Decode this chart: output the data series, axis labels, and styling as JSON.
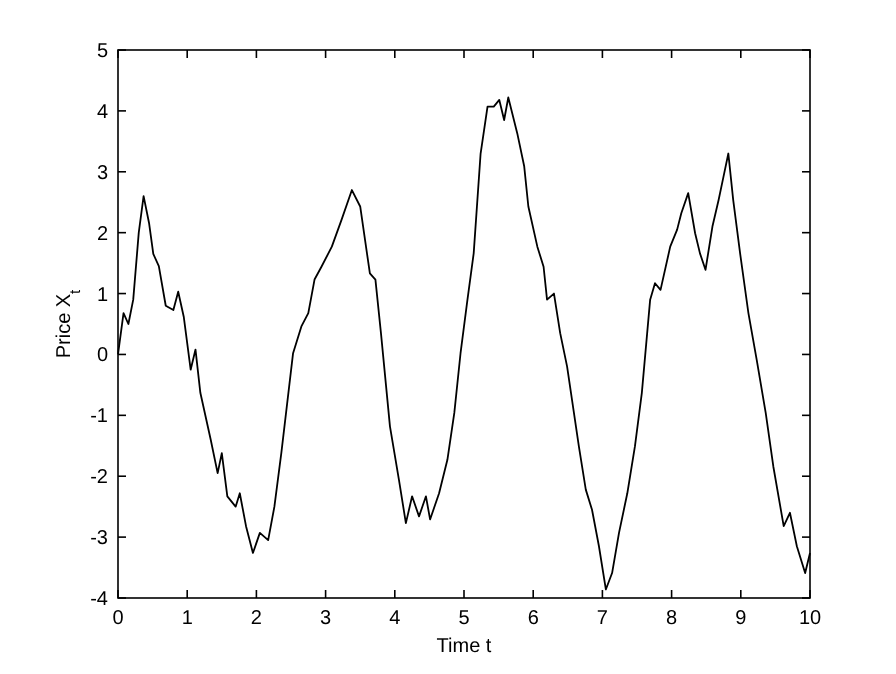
{
  "chart_data": {
    "type": "line",
    "xlabel": "Time t",
    "ylabel": "Price X$_{t}$",
    "xlim": [
      0,
      10
    ],
    "ylim": [
      -4,
      5
    ],
    "xticks": [
      0,
      1,
      2,
      3,
      4,
      5,
      6,
      7,
      8,
      9,
      10
    ],
    "yticks": [
      -4,
      -3,
      -2,
      -1,
      0,
      1,
      2,
      3,
      4,
      5
    ],
    "marker": "none",
    "line_style": "solid",
    "series": [
      {
        "color": "#000000",
        "x": [
          0,
          0.08,
          0.15,
          0.22,
          0.3,
          0.37,
          0.45,
          0.51,
          0.59,
          0.69,
          0.8,
          0.87,
          0.95,
          1.05,
          1.12,
          1.19,
          1.34,
          1.44,
          1.5,
          1.58,
          1.7,
          1.76,
          1.85,
          1.95,
          2.05,
          2.17,
          2.26,
          2.36,
          2.53,
          2.65,
          2.75,
          2.84,
          2.94,
          3.09,
          3.23,
          3.38,
          3.5,
          3.64,
          3.72,
          3.8,
          3.93,
          4.06,
          4.16,
          4.25,
          4.35,
          4.45,
          4.51,
          4.64,
          4.76,
          4.86,
          4.95,
          5.05,
          5.14,
          5.24,
          5.34,
          5.43,
          5.51,
          5.58,
          5.64,
          5.77,
          5.87,
          5.93,
          6.06,
          6.15,
          6.2,
          6.3,
          6.39,
          6.49,
          6.66,
          6.76,
          6.85,
          6.95,
          7.05,
          7.14,
          7.24,
          7.36,
          7.47,
          7.57,
          7.69,
          7.76,
          7.84,
          7.98,
          8.08,
          8.14,
          8.24,
          8.34,
          8.41,
          8.49,
          8.59,
          8.68,
          8.75,
          8.82,
          8.89,
          8.99,
          9.11,
          9.23,
          9.36,
          9.47,
          9.62,
          9.71,
          9.81,
          9.93,
          10
        ],
        "values": [
          0,
          0.68,
          0.5,
          0.9,
          2.0,
          2.6,
          2.15,
          1.65,
          1.45,
          0.8,
          0.73,
          1.03,
          0.62,
          -0.25,
          0.08,
          -0.63,
          -1.4,
          -1.95,
          -1.62,
          -2.33,
          -2.5,
          -2.28,
          -2.82,
          -3.26,
          -2.93,
          -3.05,
          -2.5,
          -1.62,
          0.02,
          0.46,
          0.68,
          1.23,
          1.44,
          1.77,
          2.21,
          2.7,
          2.43,
          1.33,
          1.23,
          0.35,
          -1.18,
          -2.06,
          -2.77,
          -2.33,
          -2.66,
          -2.33,
          -2.71,
          -2.28,
          -1.73,
          -0.96,
          0.02,
          0.9,
          1.66,
          3.3,
          4.07,
          4.07,
          4.18,
          3.85,
          4.22,
          3.63,
          3.09,
          2.43,
          1.77,
          1.44,
          0.9,
          1.0,
          0.35,
          -0.2,
          -1.51,
          -2.22,
          -2.55,
          -3.15,
          -3.86,
          -3.59,
          -2.93,
          -2.28,
          -1.51,
          -0.63,
          0.9,
          1.17,
          1.06,
          1.77,
          2.05,
          2.32,
          2.65,
          1.99,
          1.66,
          1.39,
          2.1,
          2.54,
          2.92,
          3.3,
          2.54,
          1.66,
          0.68,
          -0.09,
          -0.96,
          -1.84,
          -2.82,
          -2.6,
          -3.15,
          -3.59,
          -3.26
        ]
      }
    ]
  }
}
